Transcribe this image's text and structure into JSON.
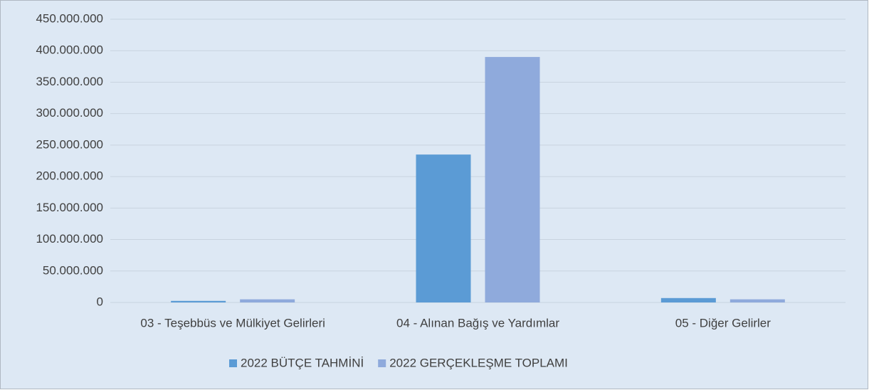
{
  "chart_data": {
    "type": "bar",
    "categories": [
      "03 - Teşebbüs ve Mülkiyet Gelirleri",
      "04 - Alınan Bağış ve Yardımlar",
      "05 - Diğer Gelirler"
    ],
    "series": [
      {
        "name": "2022 BÜTÇE TAHMİNİ",
        "color": "#5b9bd5",
        "values": [
          2500000,
          235000000,
          7000000
        ]
      },
      {
        "name": "2022 GERÇEKLEŞME TOPLAMI",
        "color": "#8faadc",
        "values": [
          5000000,
          390000000,
          5000000
        ]
      }
    ],
    "ylim": [
      0,
      450000000
    ],
    "yticks": [
      0,
      {
        "value": 50000000,
        "label": "50.000.000"
      },
      {
        "value": 100000000,
        "label": "100.000.000"
      },
      {
        "value": 150000000,
        "label": "150.000.000"
      },
      {
        "value": 200000000,
        "label": "200.000.000"
      },
      {
        "value": 250000000,
        "label": "250.000.000"
      },
      {
        "value": 300000000,
        "label": "300.000.000"
      },
      {
        "value": 350000000,
        "label": "350.000.000"
      },
      {
        "value": 400000000,
        "label": "400.000.000"
      },
      {
        "value": 450000000,
        "label": "450.000.000"
      }
    ],
    "grid": true,
    "legend": "bottom"
  }
}
